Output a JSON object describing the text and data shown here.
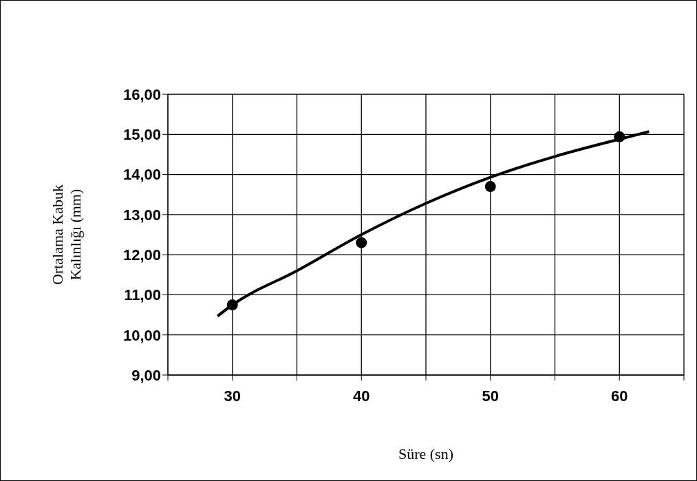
{
  "chart_data": {
    "type": "scatter",
    "xlabel": "Süre (sn)",
    "ylabel": "Ortalama Kabuk Kalınlığı (mm)",
    "xlim": [
      25,
      65
    ],
    "xticks": [
      {
        "value": 25,
        "label": null
      },
      30,
      {
        "value": 35,
        "label": null
      },
      40,
      {
        "value": 45,
        "label": null
      },
      50,
      {
        "value": 55,
        "label": null
      },
      60,
      {
        "value": 65,
        "label": null
      }
    ],
    "ylim": [
      9,
      16
    ],
    "yticks": [
      {
        "value": 9,
        "label": "9,00"
      },
      {
        "value": 10,
        "label": "10,00"
      },
      {
        "value": 11,
        "label": "11,00"
      },
      {
        "value": 12,
        "label": "12,00"
      },
      {
        "value": 13,
        "label": "13,00"
      },
      {
        "value": 14,
        "label": "14,00"
      },
      {
        "value": 15,
        "label": "15,00"
      },
      {
        "value": 16,
        "label": "16,00"
      }
    ],
    "grid": true,
    "marker": "circle",
    "series": [
      {
        "color": "#000000",
        "x": [
          30,
          40,
          50,
          60
        ],
        "values": [
          10.75,
          12.3,
          13.7,
          14.94
        ]
      },
      {
        "type": "line",
        "color": "#000000",
        "line_style": "solid",
        "marker": "none",
        "x": [
          28.85,
          30,
          35,
          40,
          45,
          50,
          55,
          60,
          62.3
        ],
        "values": [
          10.47,
          10.75,
          11.6,
          12.5,
          13.28,
          13.93,
          14.45,
          14.88,
          15.07
        ]
      }
    ]
  }
}
